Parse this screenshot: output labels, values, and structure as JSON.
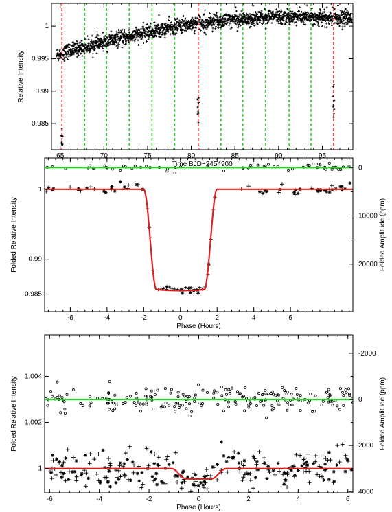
{
  "chart_data": [
    {
      "type": "scatter",
      "xlabel": "Time BJD−2454900",
      "ylabel": "Relative Intensity",
      "xlim": [
        64,
        98.5
      ],
      "ylim": [
        0.981,
        1.0035
      ],
      "xticks": [
        65,
        70,
        75,
        80,
        85,
        90,
        95
      ],
      "yticks": [
        0.985,
        0.99,
        0.995,
        1
      ],
      "ytick_labels": [
        "0.985",
        "0.99",
        "0.995",
        "1"
      ],
      "series": [
        {
          "color": "#000000",
          "trend_x": [
            64.5,
            66,
            70,
            75,
            80,
            85,
            90,
            95,
            98.5
          ],
          "trend_y": [
            0.9955,
            0.9962,
            0.9975,
            0.999,
            1.0004,
            1.001,
            1.0015,
            1.0013,
            1.0012
          ]
        }
      ],
      "transit_lines": {
        "color": "#dd2222",
        "x": [
          65.2,
          80.8,
          96.3
        ]
      },
      "secondary_lines": {
        "color": "#33cc33",
        "x": [
          67.8,
          70.3,
          72.9,
          75.5,
          78.1,
          83.4,
          85.9,
          88.5,
          91.2,
          93.7
        ]
      },
      "grid": false
    },
    {
      "type": "scatter",
      "xlabel": "Phase (Hours)",
      "ylabel": "Folded Relative Intensity",
      "y2label": "Folded Amplitude (ppm)",
      "xlim": [
        -7.4,
        9.4
      ],
      "ylim": [
        0.9825,
        1.0045
      ],
      "xticks": [
        -6,
        -4,
        -2,
        0,
        2,
        4,
        6
      ],
      "yticks": [
        0.985,
        0.99,
        1
      ],
      "ytick_labels": [
        "0.985",
        "0.99",
        "1"
      ],
      "y2ticks": [
        0,
        10000,
        20000
      ],
      "minor_y2ticks": [
        5000,
        15000
      ],
      "series": [
        {
          "name": "",
          "color": "#dd2222",
          "model": {
            "depth": 0.0145,
            "t14": 4.0,
            "t23": 2.6,
            "baseline": 1.0
          }
        },
        {
          "name": "",
          "color": "#33cc33",
          "level": 1.0031
        }
      ],
      "grid": false
    },
    {
      "type": "scatter",
      "xlabel": "Phase (Hours)",
      "ylabel": "Folded Relative Intensity",
      "y2label": "Folded Amplitude (ppm)",
      "xlim": [
        -6.2,
        6.2
      ],
      "ylim": [
        0.99895,
        1.0058
      ],
      "xticks": [
        -6,
        -4,
        -2,
        0,
        2,
        4,
        6
      ],
      "yticks": [
        1,
        1.002,
        1.004
      ],
      "ytick_labels": [
        "1",
        "1.002",
        "1.004"
      ],
      "y2ticks": [
        -2000,
        0,
        2000,
        4000
      ],
      "minor_y2ticks": [
        -1000,
        1000,
        3000
      ],
      "series": [
        {
          "name": "",
          "color": "#dd2222",
          "model": {
            "depth": 0.00045,
            "t14": 2.2,
            "t23": 1.0,
            "baseline": 1.0
          }
        },
        {
          "name": "",
          "color": "#33cc33",
          "level": 1.003
        }
      ],
      "grid": false
    }
  ]
}
